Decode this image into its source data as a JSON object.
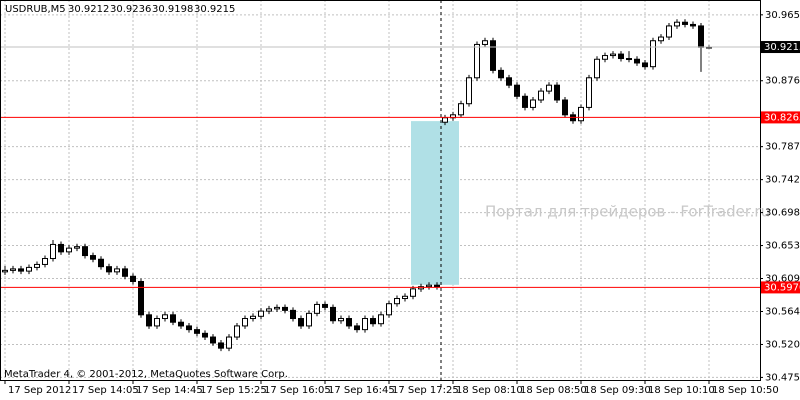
{
  "chart_data": {
    "type": "candlestick",
    "symbol": "USDRUB,M5",
    "copyright": "MetaTrader 4, © 2001-2012, MetaQuotes Software Corp.",
    "watermark": "Портал для трейдеров - ForTrader.ru",
    "ylim": [
      30.472,
      30.985
    ],
    "yticks": [
      {
        "value": 30.965,
        "label": "30.9650"
      },
      {
        "value": 30.876,
        "label": "30.8760"
      },
      {
        "value": 30.787,
        "label": "30.7870"
      },
      30.7425,
      {
        "value": 30.698,
        "label": "30.6980"
      },
      30.6535,
      {
        "value": 30.609,
        "label": "30.6090"
      },
      30.5645,
      {
        "value": 30.52,
        "label": "30.5200"
      },
      30.4755
    ],
    "grid": true,
    "up_color": "#ffffff",
    "down_color": "#000000",
    "line_color": "#000000",
    "categories": [
      "17 Sep 2012",
      null,
      null,
      null,
      null,
      null,
      null,
      null,
      "17 Sep 14:05",
      null,
      null,
      null,
      null,
      null,
      null,
      null,
      "17 Sep 14:45",
      null,
      null,
      null,
      null,
      null,
      null,
      null,
      "17 Sep 15:25",
      null,
      null,
      null,
      null,
      null,
      null,
      null,
      "17 Sep 16:05",
      null,
      null,
      null,
      null,
      null,
      null,
      null,
      "17 Sep 16:45",
      null,
      null,
      null,
      null,
      null,
      null,
      null,
      "17 Sep 17:25",
      null,
      null,
      null,
      null,
      null,
      null,
      null,
      "18 Sep 08:10",
      null,
      null,
      null,
      null,
      null,
      null,
      null,
      "18 Sep 08:50",
      null,
      null,
      null,
      null,
      null,
      null,
      null,
      "18 Sep 09:30",
      null,
      null,
      null,
      null,
      null,
      null,
      null,
      "18 Sep 10:10",
      null,
      null,
      null,
      null,
      null,
      null,
      null,
      "18 Sep 10:50"
    ],
    "candles": [
      [
        30.618,
        30.626,
        30.614,
        30.62
      ],
      [
        30.62,
        30.626,
        30.616,
        30.622
      ],
      [
        30.622,
        30.626,
        30.615,
        30.619
      ],
      [
        30.619,
        30.628,
        30.615,
        30.624
      ],
      [
        30.624,
        30.632,
        30.62,
        30.628
      ],
      [
        30.628,
        30.64,
        30.624,
        30.636
      ],
      [
        30.636,
        30.661,
        30.632,
        30.655
      ],
      [
        30.655,
        30.659,
        30.641,
        30.645
      ],
      [
        30.645,
        30.654,
        30.641,
        30.65
      ],
      [
        30.65,
        30.656,
        30.646,
        30.652
      ],
      [
        30.652,
        30.656,
        30.636,
        30.64
      ],
      [
        30.64,
        30.644,
        30.631,
        30.635
      ],
      [
        30.635,
        30.639,
        30.621,
        30.625
      ],
      [
        30.625,
        30.629,
        30.614,
        30.618
      ],
      [
        30.618,
        30.626,
        30.614,
        30.622
      ],
      [
        30.622,
        30.626,
        30.608,
        30.612
      ],
      [
        30.612,
        30.616,
        30.601,
        30.605
      ],
      [
        30.605,
        30.609,
        30.556,
        30.56
      ],
      [
        30.56,
        30.564,
        30.541,
        30.545
      ],
      [
        30.545,
        30.559,
        30.541,
        30.555
      ],
      [
        30.555,
        30.564,
        30.551,
        30.56
      ],
      [
        30.56,
        30.564,
        30.546,
        30.55
      ],
      [
        30.55,
        30.554,
        30.541,
        30.545
      ],
      [
        30.545,
        30.549,
        30.536,
        30.54
      ],
      [
        30.54,
        30.544,
        30.531,
        30.535
      ],
      [
        30.535,
        30.539,
        30.526,
        30.53
      ],
      [
        30.53,
        30.534,
        30.518,
        30.522
      ],
      [
        30.522,
        30.526,
        30.511,
        30.515
      ],
      [
        30.515,
        30.534,
        30.511,
        30.53
      ],
      [
        30.53,
        30.549,
        30.526,
        30.545
      ],
      [
        30.545,
        30.559,
        30.541,
        30.555
      ],
      [
        30.555,
        30.562,
        30.551,
        30.558
      ],
      [
        30.558,
        30.569,
        30.554,
        30.565
      ],
      [
        30.565,
        30.572,
        30.561,
        30.568
      ],
      [
        30.568,
        30.574,
        30.564,
        30.57
      ],
      [
        30.57,
        30.574,
        30.562,
        30.566
      ],
      [
        30.566,
        30.57,
        30.551,
        30.555
      ],
      [
        30.555,
        30.559,
        30.541,
        30.545
      ],
      [
        30.545,
        30.566,
        30.541,
        30.562
      ],
      [
        30.562,
        30.578,
        30.558,
        30.574
      ],
      [
        30.574,
        30.578,
        30.566,
        30.57
      ],
      [
        30.57,
        30.574,
        30.548,
        30.552
      ],
      [
        30.552,
        30.559,
        30.548,
        30.555
      ],
      [
        30.555,
        30.559,
        30.541,
        30.545
      ],
      [
        30.545,
        30.549,
        30.536,
        30.54
      ],
      [
        30.54,
        30.559,
        30.536,
        30.555
      ],
      [
        30.555,
        30.559,
        30.544,
        30.548
      ],
      [
        30.548,
        30.564,
        30.544,
        30.56
      ],
      [
        30.56,
        30.579,
        30.556,
        30.575
      ],
      [
        30.575,
        30.586,
        30.571,
        30.582
      ],
      [
        30.582,
        30.589,
        30.578,
        30.585
      ],
      [
        30.585,
        30.599,
        30.581,
        30.595
      ],
      [
        30.595,
        30.602,
        30.591,
        30.598
      ],
      [
        30.598,
        30.604,
        30.594,
        30.6
      ],
      [
        30.6,
        30.604,
        30.594,
        30.598
      ],
      [
        30.82,
        30.83,
        30.816,
        30.826
      ],
      [
        30.826,
        30.834,
        30.822,
        30.83
      ],
      [
        30.83,
        30.849,
        30.826,
        30.845
      ],
      [
        30.845,
        30.884,
        30.841,
        30.88
      ],
      [
        30.88,
        30.929,
        30.876,
        30.925
      ],
      [
        30.925,
        30.934,
        30.921,
        30.93
      ],
      [
        30.93,
        30.934,
        30.886,
        30.89
      ],
      [
        30.89,
        30.894,
        30.876,
        30.88
      ],
      [
        30.88,
        30.884,
        30.866,
        30.87
      ],
      [
        30.87,
        30.874,
        30.851,
        30.855
      ],
      [
        30.855,
        30.859,
        30.836,
        30.84
      ],
      [
        30.84,
        30.854,
        30.836,
        30.85
      ],
      [
        30.85,
        30.866,
        30.846,
        30.862
      ],
      [
        30.862,
        30.874,
        30.858,
        30.87
      ],
      [
        30.87,
        30.874,
        30.846,
        30.85
      ],
      [
        30.85,
        30.854,
        30.826,
        30.83
      ],
      [
        30.83,
        30.834,
        30.818,
        30.822
      ],
      [
        30.822,
        30.844,
        30.818,
        30.84
      ],
      [
        30.84,
        30.884,
        30.836,
        30.88
      ],
      [
        30.88,
        30.909,
        30.876,
        30.905
      ],
      [
        30.905,
        30.914,
        30.901,
        30.91
      ],
      [
        30.91,
        30.916,
        30.906,
        30.912
      ],
      [
        30.912,
        30.916,
        30.902,
        30.906
      ],
      [
        30.906,
        30.916,
        30.901,
        30.905
      ],
      [
        30.905,
        30.909,
        30.896,
        30.9
      ],
      [
        30.9,
        30.904,
        30.891,
        30.895
      ],
      [
        30.895,
        30.934,
        30.891,
        30.93
      ],
      [
        30.93,
        30.939,
        30.926,
        30.935
      ],
      [
        30.935,
        30.954,
        30.931,
        30.95
      ],
      [
        30.95,
        30.959,
        30.946,
        30.955
      ],
      [
        30.955,
        30.959,
        30.948,
        30.952
      ],
      [
        30.952,
        30.956,
        30.946,
        30.95
      ],
      [
        30.95,
        30.954,
        30.888,
        30.9212
      ],
      [
        30.9212,
        30.9236,
        30.9198,
        30.9215
      ]
    ],
    "levels": [
      {
        "value": 30.8265,
        "color": "#ff0000"
      },
      {
        "value": {
          "value": 30.597,
          "label": "30.5970"
        },
        "color": "#ff0000"
      }
    ],
    "current_price": 30.9215,
    "current_color": "#c0c0c0",
    "zone": {
      "top": 30.8215,
      "bottom": 30.6005,
      "color": "#b0e0e6"
    }
  }
}
